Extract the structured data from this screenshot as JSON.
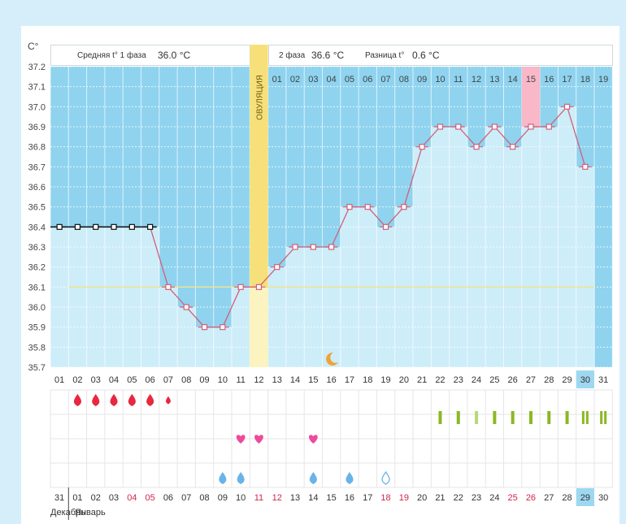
{
  "chart_data": {
    "type": "line",
    "y_unit": "C°",
    "ylim": [
      35.7,
      37.2
    ],
    "yticks": [
      "37.2",
      "37.1",
      "37.0",
      "36.9",
      "36.8",
      "36.7",
      "36.6",
      "36.5",
      "36.4",
      "36.3",
      "36.2",
      "36.1",
      "36.0",
      "35.9",
      "35.8",
      "35.7"
    ],
    "x_dates": [
      "01",
      "02",
      "03",
      "04",
      "05",
      "06",
      "07",
      "08",
      "09",
      "10",
      "11",
      "12",
      "13",
      "14",
      "15",
      "16",
      "17",
      "18",
      "19",
      "20",
      "21",
      "22",
      "23",
      "24",
      "25",
      "26",
      "27",
      "28",
      "29",
      "30",
      "31"
    ],
    "phase2_days": [
      "01",
      "02",
      "03",
      "04",
      "05",
      "06",
      "07",
      "08",
      "09",
      "10",
      "11",
      "12",
      "13",
      "14",
      "15",
      "16",
      "17",
      "18",
      "19"
    ],
    "temperatures": [
      36.4,
      36.4,
      36.4,
      36.4,
      36.4,
      36.4,
      36.1,
      36.0,
      35.9,
      35.9,
      36.1,
      36.1,
      36.2,
      36.3,
      36.3,
      36.3,
      36.5,
      36.5,
      36.4,
      36.5,
      36.8,
      36.9,
      36.9,
      36.8,
      36.9,
      36.8,
      36.9,
      36.9,
      37.0,
      36.7
    ],
    "coverline": 36.1,
    "ovulation_label": "ОВУЛЯЦИЯ",
    "header": {
      "phase1_label": "Средняя t° 1 фаза",
      "phase1_value": "36.0 °C",
      "phase2_label": "2 фаза",
      "phase2_value": "36.6 °C",
      "diff_label": "Разница t°",
      "diff_value": "0.6 °C"
    },
    "menstruation_days": [
      2,
      3,
      4,
      5,
      6,
      7
    ],
    "libido_days": [
      11,
      12,
      15
    ],
    "discharge_days": [
      10,
      11,
      15,
      17,
      19
    ],
    "bars_days": [
      22,
      23,
      24,
      25,
      26,
      27,
      28,
      29,
      30,
      31
    ],
    "calendar_days": [
      "31",
      "01",
      "02",
      "03",
      "04",
      "05",
      "06",
      "07",
      "08",
      "09",
      "10",
      "11",
      "12",
      "13",
      "14",
      "15",
      "16",
      "17",
      "18",
      "19",
      "20",
      "21",
      "22",
      "23",
      "24",
      "25",
      "26",
      "27",
      "28",
      "29",
      "30"
    ],
    "calendar_red": [
      "04",
      "05",
      "11",
      "12",
      "18",
      "19",
      "25",
      "26"
    ],
    "highlighted_date": "30",
    "highlighted_calendar": "29",
    "highlighted_phase2": "15",
    "month_prev": "Декабрь",
    "month_next": "Январь",
    "colors": {
      "bg_dark": "#8fd3ef",
      "bg_light": "#cdedf9",
      "line": "#d0607a",
      "ovulation": "#f7e07a",
      "drop_red": "#e8283f",
      "heart": "#ee4a9c",
      "drop_blue": "#6ab3e8",
      "bar_green": "#8bb824"
    }
  }
}
